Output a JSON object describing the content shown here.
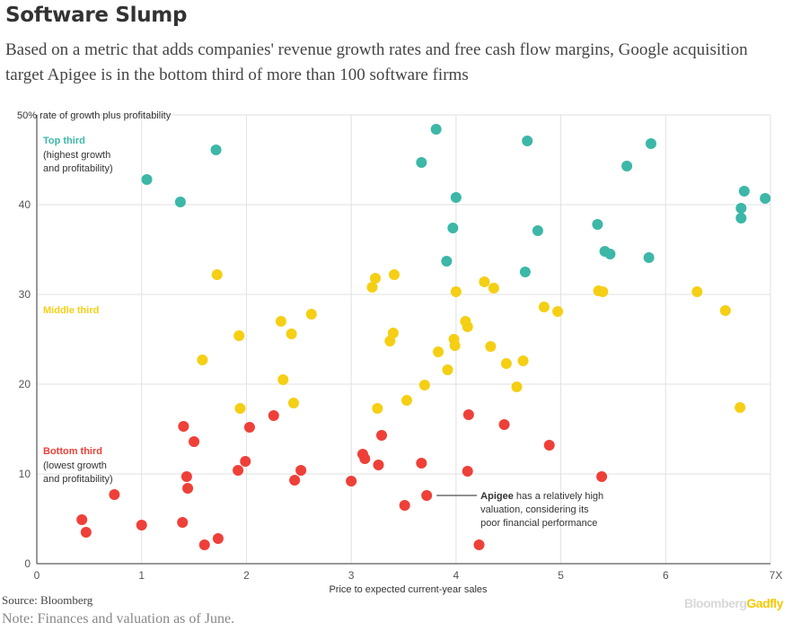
{
  "header": {
    "title": "Software Slump",
    "subtitle": "Based on a metric that adds companies' revenue growth rates and free cash flow margins, Google acquisition target Apigee is in the bottom third of more than 100 software firms"
  },
  "footer": {
    "source": "Source: Bloomberg",
    "note": "Note: Finances and valuation as of June.",
    "brand_part1": "Bloomberg",
    "brand_part2": "Gadfly"
  },
  "colors": {
    "top": "#3cb7a8",
    "middle": "#f5cf14",
    "bottom": "#ee4038",
    "grid": "#e2e2e2",
    "axis": "#333333"
  },
  "chart_data": {
    "type": "scatter",
    "title": "Software Slump",
    "xlabel": "Price to expected current-year sales",
    "ylabel": "50% rate of growth plus profitability",
    "xlim": [
      0,
      7
    ],
    "ylim": [
      0,
      50
    ],
    "x_ticks": [
      "0",
      "1",
      "2",
      "3",
      "4",
      "5",
      "6",
      "7X"
    ],
    "y_ticks": [
      "0",
      "10",
      "20",
      "30",
      "40"
    ],
    "grid": true,
    "groups": [
      {
        "key": "top",
        "label": "Top third",
        "desc": [
          "(highest growth",
          "and profitability)"
        ],
        "points": [
          [
            1.05,
            42.8
          ],
          [
            1.37,
            40.3
          ],
          [
            1.71,
            46.1
          ],
          [
            3.67,
            44.7
          ],
          [
            3.81,
            48.4
          ],
          [
            3.97,
            37.4
          ],
          [
            4.0,
            40.8
          ],
          [
            3.91,
            33.7
          ],
          [
            4.68,
            47.1
          ],
          [
            4.78,
            37.1
          ],
          [
            4.66,
            32.5
          ],
          [
            5.35,
            37.8
          ],
          [
            5.42,
            34.8
          ],
          [
            5.47,
            34.5
          ],
          [
            5.63,
            44.3
          ],
          [
            5.84,
            34.1
          ],
          [
            5.86,
            46.8
          ],
          [
            6.72,
            39.6
          ],
          [
            6.72,
            38.5
          ],
          [
            6.75,
            41.5
          ],
          [
            6.95,
            40.7
          ]
        ]
      },
      {
        "key": "middle",
        "label": "Middle third",
        "desc": [],
        "points": [
          [
            1.58,
            22.7
          ],
          [
            1.72,
            32.2
          ],
          [
            1.93,
            25.4
          ],
          [
            1.94,
            17.3
          ],
          [
            2.33,
            27.0
          ],
          [
            2.35,
            20.5
          ],
          [
            2.43,
            25.6
          ],
          [
            2.45,
            17.9
          ],
          [
            2.62,
            27.8
          ],
          [
            3.2,
            30.8
          ],
          [
            3.23,
            31.8
          ],
          [
            3.25,
            17.3
          ],
          [
            3.37,
            24.8
          ],
          [
            3.4,
            25.7
          ],
          [
            3.41,
            32.2
          ],
          [
            3.53,
            18.2
          ],
          [
            3.7,
            19.9
          ],
          [
            3.83,
            23.6
          ],
          [
            3.92,
            21.6
          ],
          [
            3.98,
            25.0
          ],
          [
            3.99,
            24.3
          ],
          [
            4.0,
            30.3
          ],
          [
            4.09,
            27.0
          ],
          [
            4.11,
            26.4
          ],
          [
            4.27,
            31.4
          ],
          [
            4.33,
            24.2
          ],
          [
            4.36,
            30.7
          ],
          [
            4.48,
            22.3
          ],
          [
            4.58,
            19.7
          ],
          [
            4.64,
            22.6
          ],
          [
            4.84,
            28.6
          ],
          [
            4.97,
            28.1
          ],
          [
            5.36,
            30.4
          ],
          [
            5.4,
            30.3
          ],
          [
            6.3,
            30.3
          ],
          [
            6.57,
            28.2
          ],
          [
            6.71,
            17.4
          ]
        ]
      },
      {
        "key": "bottom",
        "label": "Bottom third",
        "desc": [
          "(lowest growth",
          "and profitability)"
        ],
        "points": [
          [
            0.43,
            4.9
          ],
          [
            0.47,
            3.5
          ],
          [
            0.74,
            7.7
          ],
          [
            1.0,
            4.3
          ],
          [
            1.39,
            4.6
          ],
          [
            1.4,
            15.3
          ],
          [
            1.43,
            9.7
          ],
          [
            1.44,
            8.4
          ],
          [
            1.5,
            13.6
          ],
          [
            1.6,
            2.1
          ],
          [
            1.73,
            2.8
          ],
          [
            1.92,
            10.4
          ],
          [
            1.99,
            11.4
          ],
          [
            2.03,
            15.2
          ],
          [
            2.26,
            16.5
          ],
          [
            2.46,
            9.3
          ],
          [
            2.52,
            10.4
          ],
          [
            3.0,
            9.2
          ],
          [
            3.11,
            12.2
          ],
          [
            3.13,
            11.7
          ],
          [
            3.26,
            11.0
          ],
          [
            3.29,
            14.3
          ],
          [
            3.51,
            6.5
          ],
          [
            3.67,
            11.2
          ],
          [
            3.72,
            7.6
          ],
          [
            4.11,
            10.3
          ],
          [
            4.12,
            16.6
          ],
          [
            4.22,
            2.1
          ],
          [
            4.46,
            15.5
          ],
          [
            4.89,
            13.2
          ],
          [
            5.39,
            9.7
          ]
        ]
      }
    ],
    "annotation": {
      "x": 3.72,
      "y": 7.6,
      "bold": "Apigee",
      "lines": [
        " has a relatively high",
        "valuation, considering its",
        "poor financial performance"
      ]
    }
  }
}
